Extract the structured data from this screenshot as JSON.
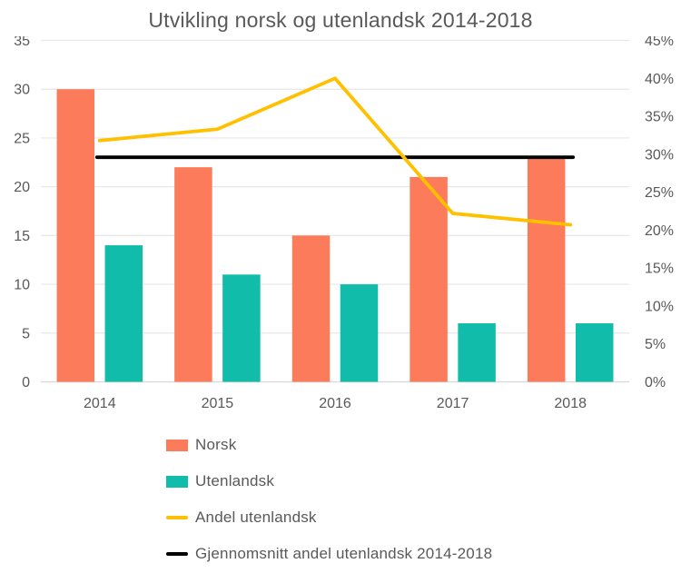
{
  "title": "Utvikling norsk og utenlandsk 2014-2018",
  "colors": {
    "norsk": "#FC7B5A",
    "utenlandsk": "#11BCAB",
    "andel": "#FFC000",
    "gjennomsnitt": "#000000",
    "grid": "#E7E7E7",
    "axis_line": "#D9D9D9",
    "text": "#595959"
  },
  "legend": [
    {
      "label": "Norsk",
      "swatch": "rect",
      "color_key": "norsk"
    },
    {
      "label": "Utenlandsk",
      "swatch": "rect",
      "color_key": "utenlandsk"
    },
    {
      "label": "Andel utenlandsk",
      "swatch": "line",
      "color_key": "andel"
    },
    {
      "label": "Gjennomsnitt andel utenlandsk 2014-2018",
      "swatch": "line",
      "color_key": "gjennomsnitt"
    }
  ],
  "chart_data": {
    "type": "combo-bar-line",
    "title": "Utvikling norsk og utenlandsk 2014-2018",
    "categories": [
      "2014",
      "2015",
      "2016",
      "2017",
      "2018"
    ],
    "series": [
      {
        "name": "Norsk",
        "type": "bar",
        "axis": "left",
        "values": [
          30,
          22,
          15,
          21,
          23
        ]
      },
      {
        "name": "Utenlandsk",
        "type": "bar",
        "axis": "left",
        "values": [
          14,
          11,
          10,
          6,
          6
        ]
      },
      {
        "name": "Andel utenlandsk",
        "type": "line",
        "axis": "right",
        "values_pct": [
          31.8,
          33.3,
          40.0,
          22.2,
          20.7
        ]
      },
      {
        "name": "Gjennomsnitt andel utenlandsk 2014-2018",
        "type": "flat-line",
        "axis": "right",
        "value_pct": 29.6
      }
    ],
    "left_axis": {
      "min": 0,
      "max": 35,
      "step": 5,
      "ticks": [
        "0",
        "5",
        "10",
        "15",
        "20",
        "25",
        "30",
        "35"
      ]
    },
    "right_axis": {
      "min": 0,
      "max": 45,
      "step": 5,
      "ticks": [
        "0%",
        "5%",
        "10%",
        "15%",
        "20%",
        "25%",
        "30%",
        "35%",
        "40%",
        "45%"
      ]
    },
    "grid": true,
    "legend_position": "bottom-left",
    "xlabel": "",
    "ylabel": ""
  }
}
